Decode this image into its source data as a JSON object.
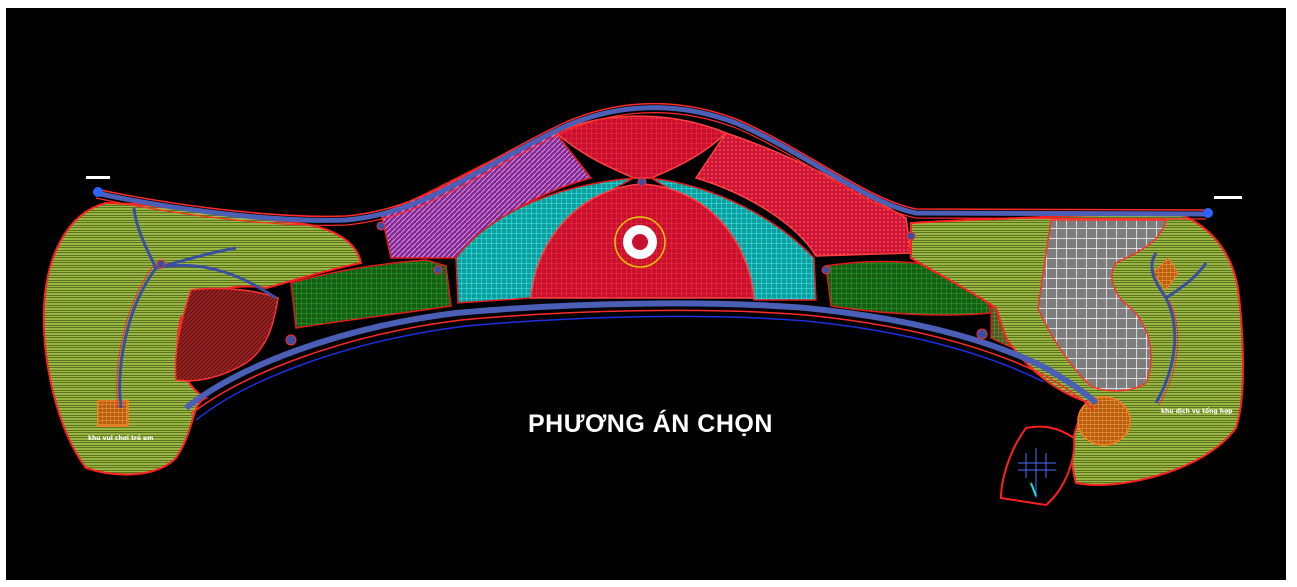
{
  "plan": {
    "title": "PHƯƠNG ÁN CHỌN",
    "label_left": "khu vui chơi trẻ em",
    "label_right": "khu dịch vụ tổng hợp"
  },
  "colors": {
    "background": "#000000",
    "greenery": "#8fb33a",
    "dark_green": "#1e7a1e",
    "plaza_red": "#c8102e",
    "cyan_zone": "#19c7c7",
    "magenta_zone": "#b84fc2",
    "white_grid": "#e8e8e8",
    "brown_zone": "#8a1d1d",
    "orange_zone": "#e08a2a",
    "road_blue": "#3a4fa0"
  }
}
